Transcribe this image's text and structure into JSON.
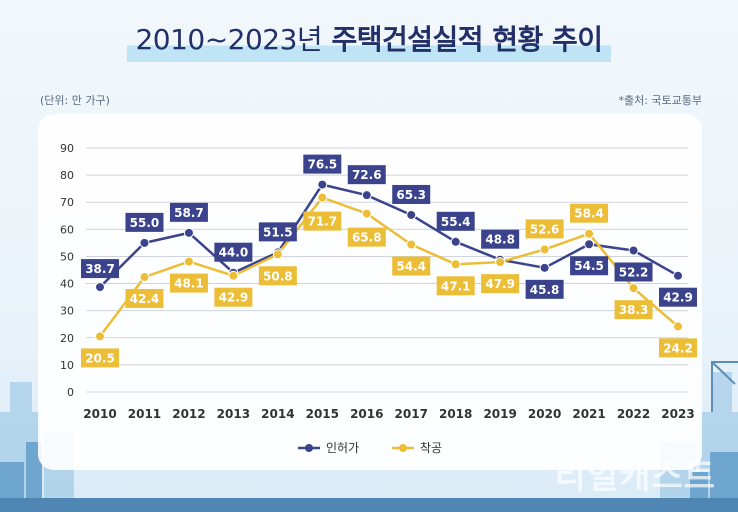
{
  "title": {
    "period": "2010~2023년",
    "main": "주택건설실적 현황 추이"
  },
  "unit_note": "(단위: 만 가구)",
  "source_note": "*출처: 국토교통부",
  "watermark": "리얼캐스트",
  "colors": {
    "permit": "#3a438c",
    "start": "#ecbd36",
    "grid": "#cfd4dc",
    "axis_text": "#333333",
    "title": "#22306a"
  },
  "chart_data": {
    "type": "line",
    "title": "2010~2023년 주택건설실적 현황 추이",
    "xlabel": "",
    "ylabel": "만 가구",
    "x": [
      "2010",
      "2011",
      "2012",
      "2013",
      "2014",
      "2015",
      "2016",
      "2017",
      "2018",
      "2019",
      "2020",
      "2021",
      "2022",
      "2023"
    ],
    "ylim": [
      0,
      90
    ],
    "yticks": [
      "0",
      "10",
      "20",
      "30",
      "40",
      "50",
      "60",
      "70",
      "80",
      "90"
    ],
    "grid": true,
    "legend": "bottom-center",
    "series": [
      {
        "name": "인허가",
        "values": [
          38.7,
          55.0,
          58.7,
          44.0,
          51.5,
          76.5,
          72.6,
          65.3,
          55.4,
          48.8,
          45.8,
          54.5,
          52.2,
          42.9
        ],
        "labels": [
          "38.7",
          "55.0",
          "58.7",
          "44.0",
          "51.5",
          "76.5",
          "72.6",
          "65.3",
          "55.4",
          "48.8",
          "45.8",
          "54.5",
          "52.2",
          "42.9"
        ]
      },
      {
        "name": "착공",
        "values": [
          20.5,
          42.4,
          48.1,
          42.9,
          50.8,
          71.7,
          65.8,
          54.4,
          47.1,
          47.9,
          52.6,
          58.4,
          38.3,
          24.2
        ],
        "labels": [
          "20.5",
          "42.4",
          "48.1",
          "42.9",
          "50.8",
          "71.7",
          "65.8",
          "54.4",
          "47.1",
          "47.9",
          "52.6",
          "58.4",
          "38.3",
          "24.2"
        ]
      }
    ]
  }
}
